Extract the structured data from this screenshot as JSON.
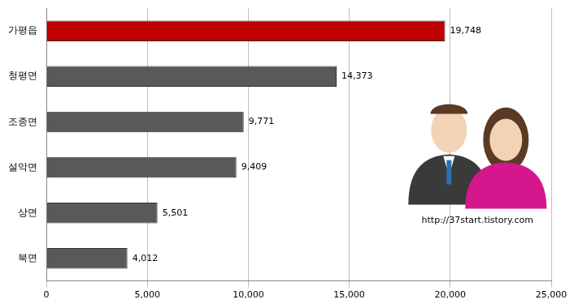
{
  "chart_data": {
    "type": "bar",
    "orientation": "horizontal",
    "categories": [
      "가평읍",
      "청평면",
      "조종면",
      "설악면",
      "상면",
      "북면"
    ],
    "values": [
      19748,
      14373,
      9771,
      9409,
      5501,
      4012
    ],
    "value_labels": [
      "19,748",
      "14,373",
      "9,771",
      "9,409",
      "5,501",
      "4,012"
    ],
    "colors": [
      "#c00000",
      "#595959",
      "#595959",
      "#595959",
      "#595959",
      "#595959"
    ],
    "xlim": [
      0,
      25000
    ],
    "xticks": [
      0,
      {
        "value": 5000,
        "label": "5,000"
      },
      {
        "value": 10000,
        "label": "10,000"
      },
      {
        "value": 15000,
        "label": "15,000"
      },
      {
        "value": 20000,
        "label": "20,000"
      },
      {
        "value": 25000,
        "label": "25,000"
      }
    ],
    "grid": true,
    "data_labels": true,
    "annotation": "http://37start.tistory.com"
  }
}
